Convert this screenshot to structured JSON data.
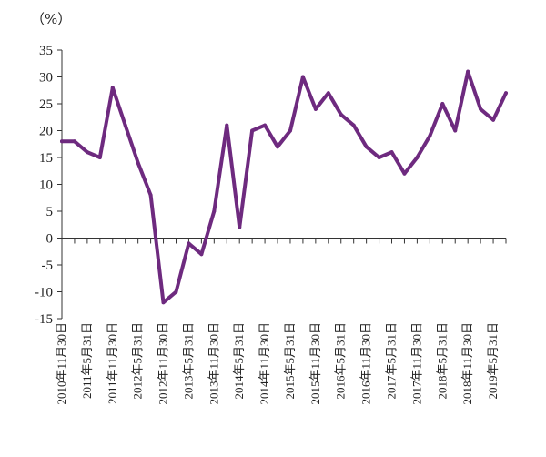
{
  "chart_data": {
    "type": "line",
    "unit_label": "（%）",
    "categories": [
      "2010年11月30日",
      "2011年5月31日",
      "2011年11月30日",
      "2012年5月31日",
      "2012年11月30日",
      "2013年5月31日",
      "2013年11月30日",
      "2014年5月31日",
      "2014年11月30日",
      "2015年5月31日",
      "2015年11月30日",
      "2016年5月31日",
      "2016年11月30日",
      "2017年5月31日",
      "2017年11月30日",
      "2018年5月31日",
      "2018年11月30日",
      "2019年5月31日"
    ],
    "x": [
      0,
      1,
      2,
      3,
      4,
      5,
      6,
      7,
      8,
      9,
      10,
      11,
      12,
      13,
      14,
      15,
      16,
      17,
      18,
      19,
      20,
      21,
      22,
      23,
      24,
      25,
      26,
      27,
      28,
      29,
      30,
      31,
      32,
      33,
      34,
      35
    ],
    "values": [
      18,
      18,
      16,
      15,
      28,
      21,
      14,
      8,
      -12,
      -10,
      -1,
      -3,
      5,
      21,
      2,
      20,
      21,
      17,
      20,
      30,
      24,
      27,
      23,
      21,
      17,
      15,
      16,
      12,
      15,
      19,
      25,
      20,
      31,
      24,
      22,
      27
    ],
    "yticks": [
      35,
      30,
      25,
      20,
      15,
      10,
      5,
      0,
      -5,
      -10,
      -15
    ],
    "ylim": [
      -15,
      35
    ],
    "line_color": "#6e2a7f",
    "axis_color": "#333333",
    "grid": false,
    "legend": "none"
  }
}
